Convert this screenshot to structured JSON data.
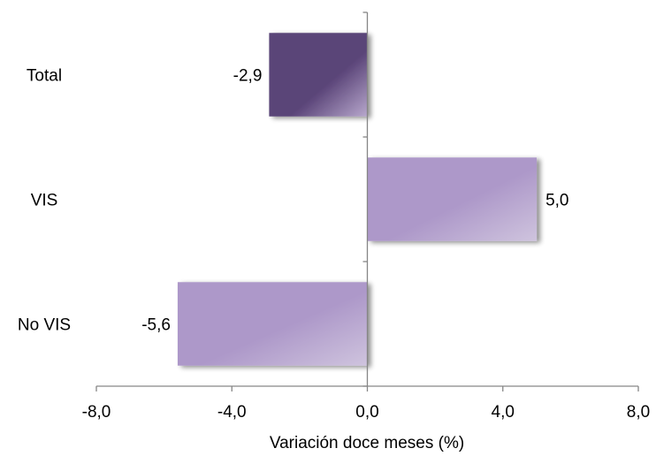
{
  "chart_data": {
    "type": "bar",
    "orientation": "horizontal",
    "categories": [
      "Total",
      "VIS",
      "No VIS"
    ],
    "values": [
      -2.9,
      5.0,
      -5.6
    ],
    "value_labels": [
      "-2,9",
      "5,0",
      "-5,6"
    ],
    "title": "",
    "xlabel": "Variación doce meses (%)",
    "ylabel": "",
    "xlim": [
      -8,
      8
    ],
    "x_ticks": [
      -8,
      -4,
      0,
      4,
      8
    ],
    "x_tick_labels": [
      "-8,0",
      "-4,0",
      "0,0",
      "4,0",
      "8,0"
    ],
    "grid": false,
    "legend": "none",
    "colors": {
      "highlight_bar": [
        "#5a4478",
        "#b7a7cc"
      ],
      "default_bar": [
        "#ad98c9",
        "#cfc4de"
      ],
      "shadow": "#b8b8b8",
      "axis": "#868686"
    }
  }
}
